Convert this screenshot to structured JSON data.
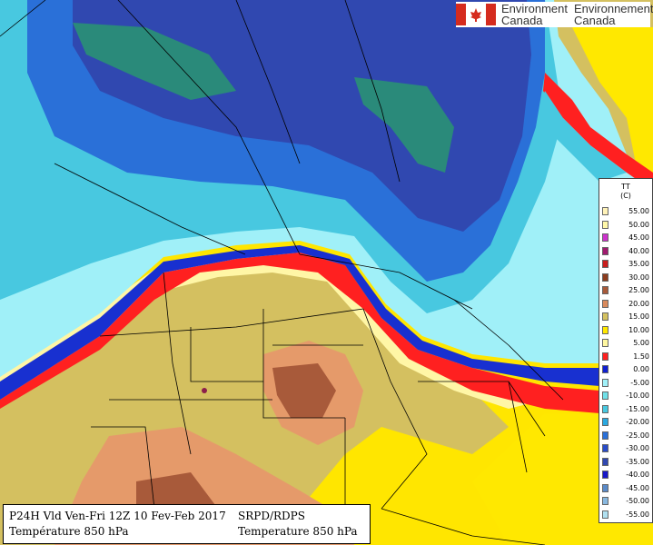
{
  "branding": {
    "text_en_1": "Environment",
    "text_fr_1": "Canada",
    "text_en_2": "Environnement",
    "text_fr_2": "Canada",
    "flag_red": "#d52b1e"
  },
  "legend": {
    "title_line1": "TT",
    "title_line2": "(C)",
    "items": [
      {
        "label": "55.00",
        "color": "#fff2b8"
      },
      {
        "label": "50.00",
        "color": "#fff8a8"
      },
      {
        "label": "45.00",
        "color": "#cc33cc"
      },
      {
        "label": "40.00",
        "color": "#a01a6e"
      },
      {
        "label": "35.00",
        "color": "#c81e1e"
      },
      {
        "label": "30.00",
        "color": "#8c3c1e"
      },
      {
        "label": "25.00",
        "color": "#a85a3a"
      },
      {
        "label": "20.00",
        "color": "#d98a5c"
      },
      {
        "label": "15.00",
        "color": "#d4c160"
      },
      {
        "label": "10.00",
        "color": "#ffe800"
      },
      {
        "label": "5.00",
        "color": "#fff7a0"
      },
      {
        "label": "1.50",
        "color": "#ff2020"
      },
      {
        "label": "0.00",
        "color": "#1020d0"
      },
      {
        "label": "-5.00",
        "color": "#a0f0f8"
      },
      {
        "label": "-10.00",
        "color": "#70e0e8"
      },
      {
        "label": "-15.00",
        "color": "#48c8e0"
      },
      {
        "label": "-20.00",
        "color": "#2aa8e0"
      },
      {
        "label": "-25.00",
        "color": "#2a70d8"
      },
      {
        "label": "-30.00",
        "color": "#2a4cc8"
      },
      {
        "label": "-35.00",
        "color": "#3048b0"
      },
      {
        "label": "-40.00",
        "color": "#1818c8"
      },
      {
        "label": "-45.00",
        "color": "#5a8ac8"
      },
      {
        "label": "-50.00",
        "color": "#88b8e0"
      },
      {
        "label": "-55.00",
        "color": "#b0e0f0"
      }
    ]
  },
  "info": {
    "left_line1": "P24H Vld Ven-Fri 12Z 10 Fev-Feb 2017",
    "left_line2": "Température 850 hPa",
    "right_line1": "SRPD/RDPS",
    "right_line2": "Temperature 850 hPa"
  }
}
